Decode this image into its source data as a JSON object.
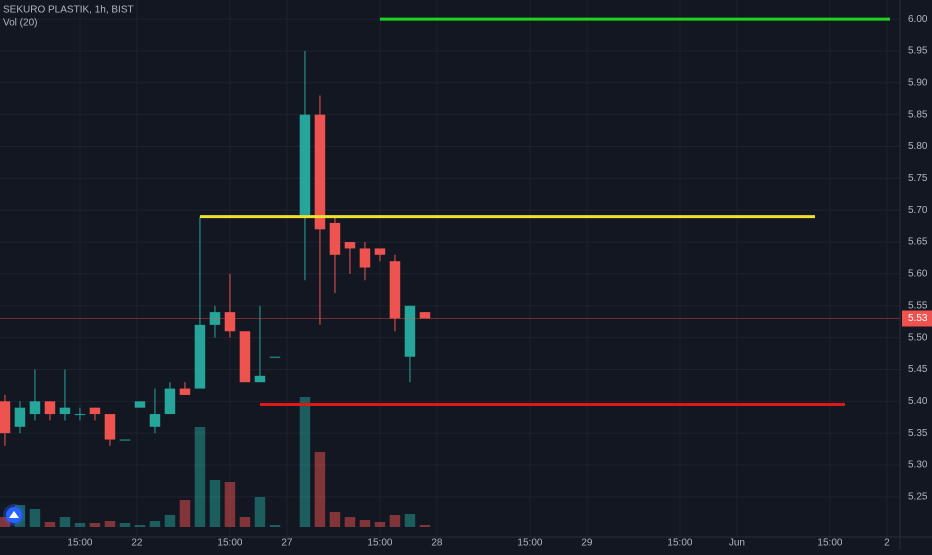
{
  "chart_data": {
    "type": "candlestick",
    "title": "SEKURO PLASTIK, 1h, BIST",
    "subtitle": "Vol (20)",
    "x": [
      0,
      1,
      2,
      3,
      4,
      5,
      6,
      7,
      8,
      9,
      10,
      11,
      12,
      13,
      14,
      15,
      16,
      17,
      18,
      20,
      21,
      22,
      23,
      24,
      25,
      26,
      27,
      28
    ],
    "open": [
      5.4,
      5.36,
      5.38,
      5.4,
      5.38,
      5.38,
      5.39,
      5.38,
      5.34,
      5.39,
      5.36,
      5.38,
      5.42,
      5.42,
      5.52,
      5.54,
      5.51,
      5.43,
      5.47,
      5.69,
      5.85,
      5.68,
      5.65,
      5.64,
      5.64,
      5.62,
      5.47,
      5.54
    ],
    "high": [
      5.41,
      5.4,
      5.45,
      5.4,
      5.45,
      5.39,
      5.39,
      5.38,
      5.34,
      5.4,
      5.42,
      5.43,
      5.43,
      5.69,
      5.55,
      5.6,
      5.51,
      5.55,
      5.47,
      5.95,
      5.88,
      5.69,
      5.65,
      5.65,
      5.64,
      5.63,
      5.55,
      5.54
    ],
    "low": [
      5.33,
      5.35,
      5.37,
      5.37,
      5.37,
      5.37,
      5.37,
      5.33,
      5.34,
      5.39,
      5.35,
      5.38,
      5.41,
      5.42,
      5.5,
      5.5,
      5.43,
      5.43,
      5.47,
      5.59,
      5.52,
      5.57,
      5.6,
      5.59,
      5.62,
      5.51,
      5.43,
      5.53
    ],
    "close": [
      5.35,
      5.39,
      5.4,
      5.38,
      5.39,
      5.38,
      5.38,
      5.34,
      5.34,
      5.4,
      5.38,
      5.42,
      5.41,
      5.52,
      5.54,
      5.51,
      5.43,
      5.44,
      5.47,
      5.85,
      5.67,
      5.63,
      5.64,
      5.61,
      5.63,
      5.53,
      5.55,
      5.53
    ],
    "volume": [
      10,
      22,
      18,
      5,
      10,
      4,
      4,
      6,
      4,
      2,
      6,
      12,
      27,
      100,
      47,
      45,
      10,
      30,
      2,
      130,
      75,
      15,
      10,
      7,
      5,
      12,
      13,
      2
    ],
    "up_color": "#26a69a",
    "down_color": "#ef5350",
    "xlim": [
      -0.33,
      59.67
    ],
    "ylim": [
      5.187,
      6.03
    ],
    "vlim": [
      0,
      130
    ],
    "xticks": [
      {
        "value": 5,
        "label": "15:00"
      },
      {
        "value": 8.8,
        "label": "22"
      },
      {
        "value": 15,
        "label": "15:00"
      },
      {
        "value": 18.8,
        "label": "27"
      },
      {
        "value": 25,
        "label": "15:00"
      },
      {
        "value": 28.8,
        "label": "28"
      },
      {
        "value": 35,
        "label": "15:00"
      },
      {
        "value": 38.8,
        "label": "29"
      },
      {
        "value": 45,
        "label": "15:00"
      },
      {
        "value": 48.8,
        "label": "Jun"
      },
      {
        "value": 55,
        "label": "15:00"
      },
      {
        "value": 58.8,
        "label": "2"
      }
    ],
    "yticks": [
      {
        "value": 5.25,
        "label": "5.25"
      },
      {
        "value": 5.3,
        "label": "5.30"
      },
      {
        "value": 5.35,
        "label": "5.35"
      },
      {
        "value": 5.4,
        "label": "5.40"
      },
      {
        "value": 5.45,
        "label": "5.45"
      },
      {
        "value": 5.5,
        "label": "5.50"
      },
      {
        "value": 5.55,
        "label": "5.55"
      },
      {
        "value": 5.6,
        "label": "5.60"
      },
      {
        "value": 5.65,
        "label": "5.65"
      },
      {
        "value": 5.7,
        "label": "5.70"
      },
      {
        "value": 5.75,
        "label": "5.75"
      },
      {
        "value": 5.8,
        "label": "5.80"
      },
      {
        "value": 5.85,
        "label": "5.85"
      },
      {
        "value": 5.9,
        "label": "5.90"
      },
      {
        "value": 5.95,
        "label": "5.95"
      },
      {
        "value": 6.0,
        "label": "6.00"
      }
    ],
    "grid": true,
    "levels": [
      {
        "value": 6.0,
        "color": "#1ed41e",
        "x_range": [
          25,
          59
        ]
      },
      {
        "value": 5.69,
        "color": "#f0e130",
        "x_range": [
          13,
          54
        ]
      },
      {
        "value": 5.395,
        "color": "#e01818",
        "x_range": [
          17,
          56
        ]
      }
    ],
    "last_price": {
      "value": 5.53,
      "label": "5.53",
      "color": "#ef5350"
    }
  }
}
